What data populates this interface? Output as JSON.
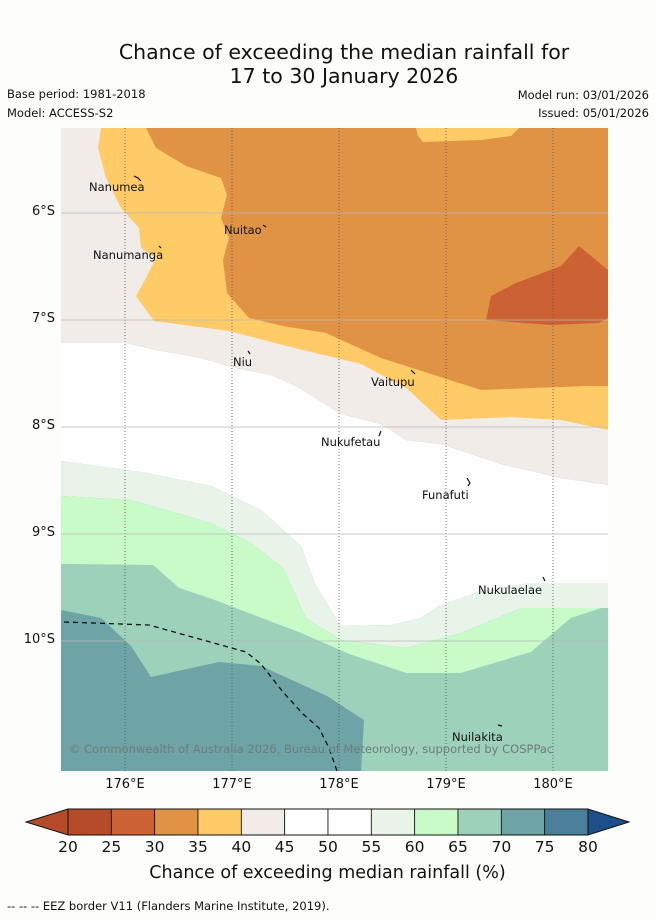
{
  "title": {
    "line1": "Chance of exceeding the median rainfall for",
    "line2": "17 to 30 January 2026"
  },
  "meta": {
    "base_period": "Base period: 1981-2018",
    "model": "Model: ACCESS-S2",
    "model_run": "Model run: 03/01/2026",
    "issued": "Issued: 05/01/2026"
  },
  "map": {
    "places": [
      "Nanumea",
      "Nuitao",
      "Nanumanga",
      "Niu",
      "Vaitupu",
      "Nukufetau",
      "Funafuti",
      "Nukulaelae",
      "Nuilakita"
    ],
    "lat_labels": [
      "6°S",
      "7°S",
      "8°S",
      "9°S",
      "10°S"
    ],
    "lon_labels": [
      "176°E",
      "177°E",
      "178°E",
      "179°E",
      "180°E"
    ],
    "copyright": "© Commonwealth of Australia 2026, Bureau of Meteorology, supported by COSPPac"
  },
  "colorbar": {
    "ticks": [
      "20",
      "25",
      "30",
      "35",
      "40",
      "45",
      "50",
      "55",
      "60",
      "65",
      "70",
      "75",
      "80"
    ],
    "colors": [
      "#b54b28",
      "#cc6234",
      "#e09344",
      "#fecb67",
      "#f1ece8",
      "#fefefe",
      "#fdfefd",
      "#e9f4e8",
      "#c9fbc9",
      "#9dd1b9",
      "#6ea4a6",
      "#4a7f9a",
      "#1e4f8a"
    ],
    "title": "Chance of exceeding median rainfall (%)"
  },
  "legend": {
    "text": "--  --  -- EEZ border V11 (Flanders Marine Institute, 2019)."
  }
}
